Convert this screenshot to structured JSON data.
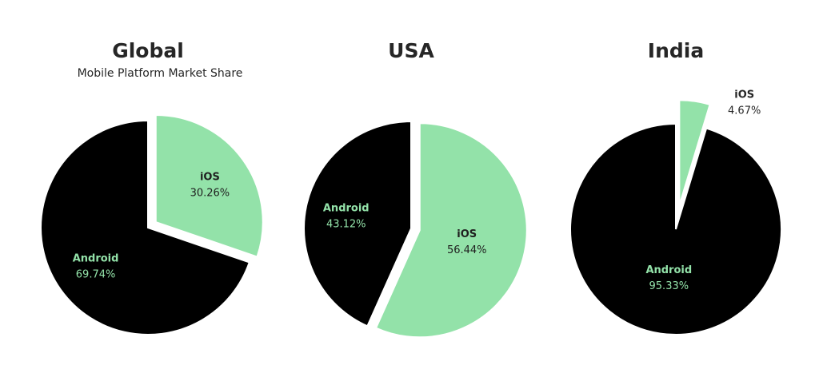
{
  "colors": {
    "android": "#000000",
    "ios": "#93e2a9",
    "title": "#262626",
    "outside_label": "#262626",
    "background": "#ffffff"
  },
  "chart_data": [
    {
      "type": "pie",
      "title": "Global",
      "subtitle": "Mobile Platform Market Share",
      "slices": [
        {
          "name": "iOS",
          "value": 30.26,
          "value_label": "30.26%",
          "exploded": true
        },
        {
          "name": "Android",
          "value": 69.74,
          "value_label": "69.74%",
          "exploded": false
        }
      ]
    },
    {
      "type": "pie",
      "title": "USA",
      "subtitle": "",
      "slices": [
        {
          "name": "iOS",
          "value": 56.44,
          "value_label": "56.44%",
          "exploded": true
        },
        {
          "name": "Android",
          "value": 43.12,
          "value_label": "43.12%",
          "exploded": false
        }
      ]
    },
    {
      "type": "pie",
      "title": "India",
      "subtitle": "",
      "slices": [
        {
          "name": "iOS",
          "value": 4.67,
          "value_label": "4.67%",
          "exploded": true,
          "label_outside": true
        },
        {
          "name": "Android",
          "value": 95.33,
          "value_label": "95.33%",
          "exploded": false
        }
      ]
    }
  ]
}
